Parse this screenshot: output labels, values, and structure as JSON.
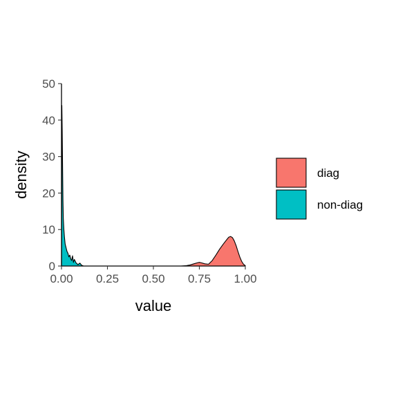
{
  "chart_data": {
    "type": "area",
    "xlabel": "value",
    "ylabel": "density",
    "xlim": [
      0,
      1
    ],
    "ylim": [
      0,
      50
    ],
    "x_ticks": [
      0,
      0.25,
      0.5,
      0.75,
      1
    ],
    "x_tick_labels": [
      "0.00",
      "0.25",
      "0.50",
      "0.75",
      "1.00"
    ],
    "y_ticks": [
      0,
      10,
      20,
      30,
      40,
      50
    ],
    "y_tick_labels": [
      "0",
      "10",
      "20",
      "30",
      "40",
      "50"
    ],
    "grid": false,
    "legend_position": "right",
    "series": [
      {
        "name": "diag",
        "color": "#F8766D",
        "x": [
          0.65,
          0.68,
          0.7,
          0.72,
          0.74,
          0.75,
          0.76,
          0.78,
          0.8,
          0.82,
          0.84,
          0.86,
          0.88,
          0.9,
          0.91,
          0.92,
          0.93,
          0.94,
          0.95,
          0.96,
          0.97,
          0.98,
          0.99,
          1.0
        ],
        "y": [
          0,
          0.1,
          0.3,
          0.6,
          0.9,
          1.0,
          0.9,
          0.6,
          0.5,
          1.5,
          3.0,
          4.6,
          6.0,
          7.3,
          7.9,
          8.1,
          7.8,
          6.9,
          5.6,
          4.0,
          2.5,
          1.3,
          0.5,
          0.1
        ]
      },
      {
        "name": "non-diag",
        "color": "#00BFC4",
        "x": [
          0.0,
          0.002,
          0.004,
          0.006,
          0.008,
          0.01,
          0.013,
          0.016,
          0.02,
          0.025,
          0.03,
          0.035,
          0.04,
          0.045,
          0.05,
          0.055,
          0.06,
          0.065,
          0.07,
          0.08,
          0.09,
          0.1,
          0.11,
          0.12
        ],
        "y": [
          0,
          44,
          37,
          27,
          18,
          13,
          10,
          8,
          6,
          5,
          4,
          3.5,
          2.5,
          3,
          2,
          1.5,
          2.8,
          1,
          1.8,
          0.8,
          0.4,
          0.8,
          0.2,
          0
        ]
      }
    ]
  }
}
